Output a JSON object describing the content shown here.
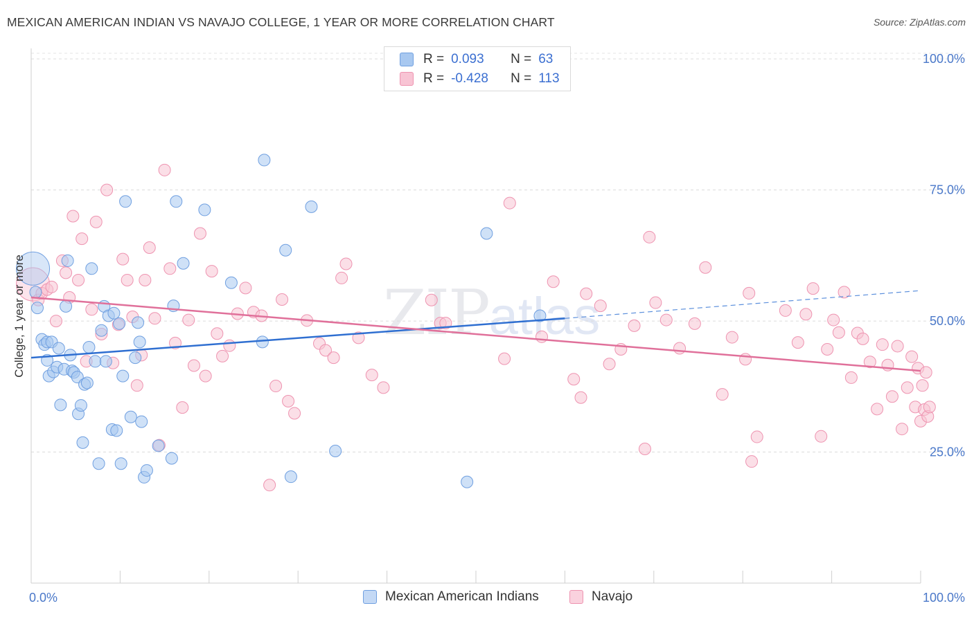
{
  "header": {
    "title": "MEXICAN AMERICAN INDIAN VS NAVAJO COLLEGE, 1 YEAR OR MORE CORRELATION CHART",
    "source": "Source: ZipAtlas.com"
  },
  "watermark": {
    "zip": "ZIP",
    "atlas": "atlas"
  },
  "legend": {
    "rows": [
      {
        "r_label": "R =",
        "r_value": "0.093",
        "n_label": "N =",
        "n_value": "63",
        "color": "#a8c8f0",
        "border": "#6f9fe0"
      },
      {
        "r_label": "R =",
        "r_value": "-0.428",
        "n_label": "N = ",
        "n_value": "113",
        "color": "#f8c4d4",
        "border": "#ee93b0"
      }
    ]
  },
  "bottom_legend": {
    "items": [
      {
        "label": "Mexican American Indians",
        "color": "#c4d9f5",
        "border": "#6f9fe0"
      },
      {
        "label": "Navajo",
        "color": "#fad2de",
        "border": "#ee93b0"
      }
    ]
  },
  "chart_data": {
    "type": "scatter",
    "title": "MEXICAN AMERICAN INDIAN VS NAVAJO COLLEGE, 1 YEAR OR MORE CORRELATION CHART",
    "xlabel": "",
    "ylabel": "College, 1 year or more",
    "xlim": [
      0,
      100
    ],
    "ylim": [
      0,
      102
    ],
    "x_tick_labels": [
      "0.0%",
      "100.0%"
    ],
    "y_ticks": [
      25,
      50,
      75,
      100
    ],
    "y_tick_labels": [
      "25.0%",
      "50.0%",
      "75.0%",
      "100.0%"
    ],
    "grid": true,
    "legend_position": "top-center",
    "series": [
      {
        "name": "Mexican American Indians",
        "color": "#6f9fe0",
        "fill": "#a8c8f0",
        "R": 0.093,
        "N": 63,
        "trend": {
          "x0": 0,
          "y0": 43.0,
          "x1": 60,
          "y1": 50.5,
          "dash_to_x": 100,
          "dash_to_y": 55.8
        },
        "points": [
          {
            "x": 0.2,
            "y": 60.0,
            "big": true
          },
          {
            "x": 0.5,
            "y": 55.5
          },
          {
            "x": 0.7,
            "y": 52.5
          },
          {
            "x": 1.2,
            "y": 46.5
          },
          {
            "x": 1.5,
            "y": 45.5
          },
          {
            "x": 1.8,
            "y": 46.0
          },
          {
            "x": 1.8,
            "y": 42.5
          },
          {
            "x": 2.0,
            "y": 39.5
          },
          {
            "x": 2.3,
            "y": 46.0
          },
          {
            "x": 2.5,
            "y": 40.3
          },
          {
            "x": 2.9,
            "y": 41.2
          },
          {
            "x": 3.1,
            "y": 44.8
          },
          {
            "x": 3.3,
            "y": 34.0
          },
          {
            "x": 3.7,
            "y": 40.8
          },
          {
            "x": 3.9,
            "y": 52.8
          },
          {
            "x": 4.1,
            "y": 61.5
          },
          {
            "x": 4.4,
            "y": 43.5
          },
          {
            "x": 4.6,
            "y": 40.5
          },
          {
            "x": 4.8,
            "y": 40.2
          },
          {
            "x": 5.2,
            "y": 39.3
          },
          {
            "x": 5.3,
            "y": 32.3
          },
          {
            "x": 5.6,
            "y": 33.9
          },
          {
            "x": 5.8,
            "y": 26.8
          },
          {
            "x": 6.0,
            "y": 37.9
          },
          {
            "x": 6.3,
            "y": 38.2
          },
          {
            "x": 6.5,
            "y": 45.0
          },
          {
            "x": 6.8,
            "y": 60.0
          },
          {
            "x": 7.2,
            "y": 42.3
          },
          {
            "x": 7.6,
            "y": 22.8
          },
          {
            "x": 7.9,
            "y": 48.2
          },
          {
            "x": 8.2,
            "y": 52.8
          },
          {
            "x": 8.4,
            "y": 42.3
          },
          {
            "x": 8.7,
            "y": 51.0
          },
          {
            "x": 9.1,
            "y": 29.3
          },
          {
            "x": 9.3,
            "y": 51.5
          },
          {
            "x": 9.6,
            "y": 29.1
          },
          {
            "x": 9.9,
            "y": 49.5
          },
          {
            "x": 10.1,
            "y": 22.8
          },
          {
            "x": 10.3,
            "y": 39.5
          },
          {
            "x": 10.6,
            "y": 72.8
          },
          {
            "x": 11.2,
            "y": 31.7
          },
          {
            "x": 11.7,
            "y": 43.0
          },
          {
            "x": 12.0,
            "y": 49.7
          },
          {
            "x": 12.2,
            "y": 46.0
          },
          {
            "x": 12.4,
            "y": 30.8
          },
          {
            "x": 12.7,
            "y": 20.2
          },
          {
            "x": 13.0,
            "y": 21.5
          },
          {
            "x": 14.3,
            "y": 26.2
          },
          {
            "x": 15.8,
            "y": 23.8
          },
          {
            "x": 16.0,
            "y": 52.9
          },
          {
            "x": 16.3,
            "y": 72.8
          },
          {
            "x": 17.1,
            "y": 61.0
          },
          {
            "x": 19.5,
            "y": 71.2
          },
          {
            "x": 22.5,
            "y": 57.3
          },
          {
            "x": 26.0,
            "y": 46.0
          },
          {
            "x": 26.2,
            "y": 80.7
          },
          {
            "x": 28.6,
            "y": 63.5
          },
          {
            "x": 29.2,
            "y": 20.3
          },
          {
            "x": 31.5,
            "y": 71.8
          },
          {
            "x": 34.2,
            "y": 25.2
          },
          {
            "x": 49.0,
            "y": 19.3
          },
          {
            "x": 51.2,
            "y": 66.7
          },
          {
            "x": 57.2,
            "y": 51.0
          }
        ]
      },
      {
        "name": "Navajo",
        "color": "#ee93b0",
        "fill": "#f8c4d4",
        "R": -0.428,
        "N": 113,
        "trend": {
          "x0": 0,
          "y0": 54.5,
          "x1": 100,
          "y1": 40.5
        },
        "points": [
          {
            "x": 0.2,
            "y": 57.0,
            "big": true
          },
          {
            "x": 0.8,
            "y": 54.0
          },
          {
            "x": 1.2,
            "y": 55.3
          },
          {
            "x": 1.8,
            "y": 56.0
          },
          {
            "x": 2.3,
            "y": 56.5
          },
          {
            "x": 2.8,
            "y": 50.0
          },
          {
            "x": 3.5,
            "y": 61.5
          },
          {
            "x": 3.9,
            "y": 59.2
          },
          {
            "x": 4.3,
            "y": 54.5
          },
          {
            "x": 4.7,
            "y": 70.0
          },
          {
            "x": 5.3,
            "y": 57.8
          },
          {
            "x": 5.7,
            "y": 65.7
          },
          {
            "x": 6.2,
            "y": 42.3
          },
          {
            "x": 6.8,
            "y": 52.2
          },
          {
            "x": 7.3,
            "y": 68.9
          },
          {
            "x": 7.9,
            "y": 47.5
          },
          {
            "x": 8.5,
            "y": 75.0
          },
          {
            "x": 9.2,
            "y": 42.0
          },
          {
            "x": 9.8,
            "y": 49.3
          },
          {
            "x": 10.3,
            "y": 61.8
          },
          {
            "x": 10.8,
            "y": 57.8
          },
          {
            "x": 11.4,
            "y": 50.8
          },
          {
            "x": 11.9,
            "y": 37.7
          },
          {
            "x": 12.4,
            "y": 43.5
          },
          {
            "x": 12.8,
            "y": 57.8
          },
          {
            "x": 13.3,
            "y": 64.0
          },
          {
            "x": 13.9,
            "y": 50.5
          },
          {
            "x": 14.4,
            "y": 26.3
          },
          {
            "x": 15.0,
            "y": 78.8
          },
          {
            "x": 15.6,
            "y": 60.0
          },
          {
            "x": 16.2,
            "y": 45.8
          },
          {
            "x": 17.0,
            "y": 33.5
          },
          {
            "x": 17.7,
            "y": 50.2
          },
          {
            "x": 18.3,
            "y": 41.5
          },
          {
            "x": 19.0,
            "y": 66.7
          },
          {
            "x": 19.6,
            "y": 39.5
          },
          {
            "x": 20.3,
            "y": 59.5
          },
          {
            "x": 20.9,
            "y": 47.6
          },
          {
            "x": 21.5,
            "y": 43.3
          },
          {
            "x": 22.3,
            "y": 45.3
          },
          {
            "x": 23.2,
            "y": 51.4
          },
          {
            "x": 24.1,
            "y": 56.3
          },
          {
            "x": 25.0,
            "y": 51.7
          },
          {
            "x": 25.9,
            "y": 51.0
          },
          {
            "x": 26.8,
            "y": 18.7
          },
          {
            "x": 27.5,
            "y": 37.6
          },
          {
            "x": 28.2,
            "y": 54.1
          },
          {
            "x": 28.9,
            "y": 34.7
          },
          {
            "x": 29.6,
            "y": 32.4
          },
          {
            "x": 31.0,
            "y": 50.1
          },
          {
            "x": 32.4,
            "y": 45.7
          },
          {
            "x": 33.1,
            "y": 44.4
          },
          {
            "x": 34.0,
            "y": 43.0
          },
          {
            "x": 34.9,
            "y": 58.2
          },
          {
            "x": 35.4,
            "y": 60.9
          },
          {
            "x": 36.8,
            "y": 46.8
          },
          {
            "x": 38.3,
            "y": 39.7
          },
          {
            "x": 39.6,
            "y": 37.3
          },
          {
            "x": 45.0,
            "y": 54.0
          },
          {
            "x": 46.0,
            "y": 49.6
          },
          {
            "x": 46.6,
            "y": 49.6
          },
          {
            "x": 53.2,
            "y": 42.8
          },
          {
            "x": 53.8,
            "y": 72.5
          },
          {
            "x": 57.4,
            "y": 47.0
          },
          {
            "x": 58.7,
            "y": 57.5
          },
          {
            "x": 61.0,
            "y": 38.9
          },
          {
            "x": 61.8,
            "y": 35.4
          },
          {
            "x": 62.4,
            "y": 55.2
          },
          {
            "x": 64.0,
            "y": 52.9
          },
          {
            "x": 65.0,
            "y": 41.8
          },
          {
            "x": 66.3,
            "y": 44.6
          },
          {
            "x": 67.8,
            "y": 49.1
          },
          {
            "x": 69.0,
            "y": 25.6
          },
          {
            "x": 69.5,
            "y": 66.0
          },
          {
            "x": 70.2,
            "y": 53.5
          },
          {
            "x": 71.4,
            "y": 50.2
          },
          {
            "x": 72.9,
            "y": 44.8
          },
          {
            "x": 74.6,
            "y": 49.5
          },
          {
            "x": 75.8,
            "y": 60.2
          },
          {
            "x": 77.7,
            "y": 36.0
          },
          {
            "x": 78.8,
            "y": 46.9
          },
          {
            "x": 80.3,
            "y": 42.7
          },
          {
            "x": 80.7,
            "y": 55.3
          },
          {
            "x": 81.0,
            "y": 23.2
          },
          {
            "x": 81.6,
            "y": 27.9
          },
          {
            "x": 84.8,
            "y": 52.0
          },
          {
            "x": 86.2,
            "y": 45.9
          },
          {
            "x": 87.1,
            "y": 51.3
          },
          {
            "x": 87.9,
            "y": 56.2
          },
          {
            "x": 88.8,
            "y": 28.0
          },
          {
            "x": 89.5,
            "y": 44.6
          },
          {
            "x": 90.2,
            "y": 50.2
          },
          {
            "x": 90.8,
            "y": 47.8
          },
          {
            "x": 91.4,
            "y": 55.5
          },
          {
            "x": 92.2,
            "y": 39.2
          },
          {
            "x": 92.9,
            "y": 47.7
          },
          {
            "x": 93.5,
            "y": 46.6
          },
          {
            "x": 94.3,
            "y": 42.2
          },
          {
            "x": 95.1,
            "y": 33.2
          },
          {
            "x": 95.7,
            "y": 45.5
          },
          {
            "x": 96.3,
            "y": 41.6
          },
          {
            "x": 96.8,
            "y": 35.6
          },
          {
            "x": 97.4,
            "y": 45.2
          },
          {
            "x": 97.9,
            "y": 29.4
          },
          {
            "x": 98.5,
            "y": 37.3
          },
          {
            "x": 99.0,
            "y": 43.2
          },
          {
            "x": 99.4,
            "y": 33.6
          },
          {
            "x": 99.7,
            "y": 41.0
          },
          {
            "x": 100.0,
            "y": 30.9
          },
          {
            "x": 100.2,
            "y": 37.7
          },
          {
            "x": 100.4,
            "y": 33.1
          },
          {
            "x": 100.6,
            "y": 40.2
          },
          {
            "x": 100.8,
            "y": 31.8
          },
          {
            "x": 101.0,
            "y": 33.6
          }
        ]
      }
    ]
  }
}
